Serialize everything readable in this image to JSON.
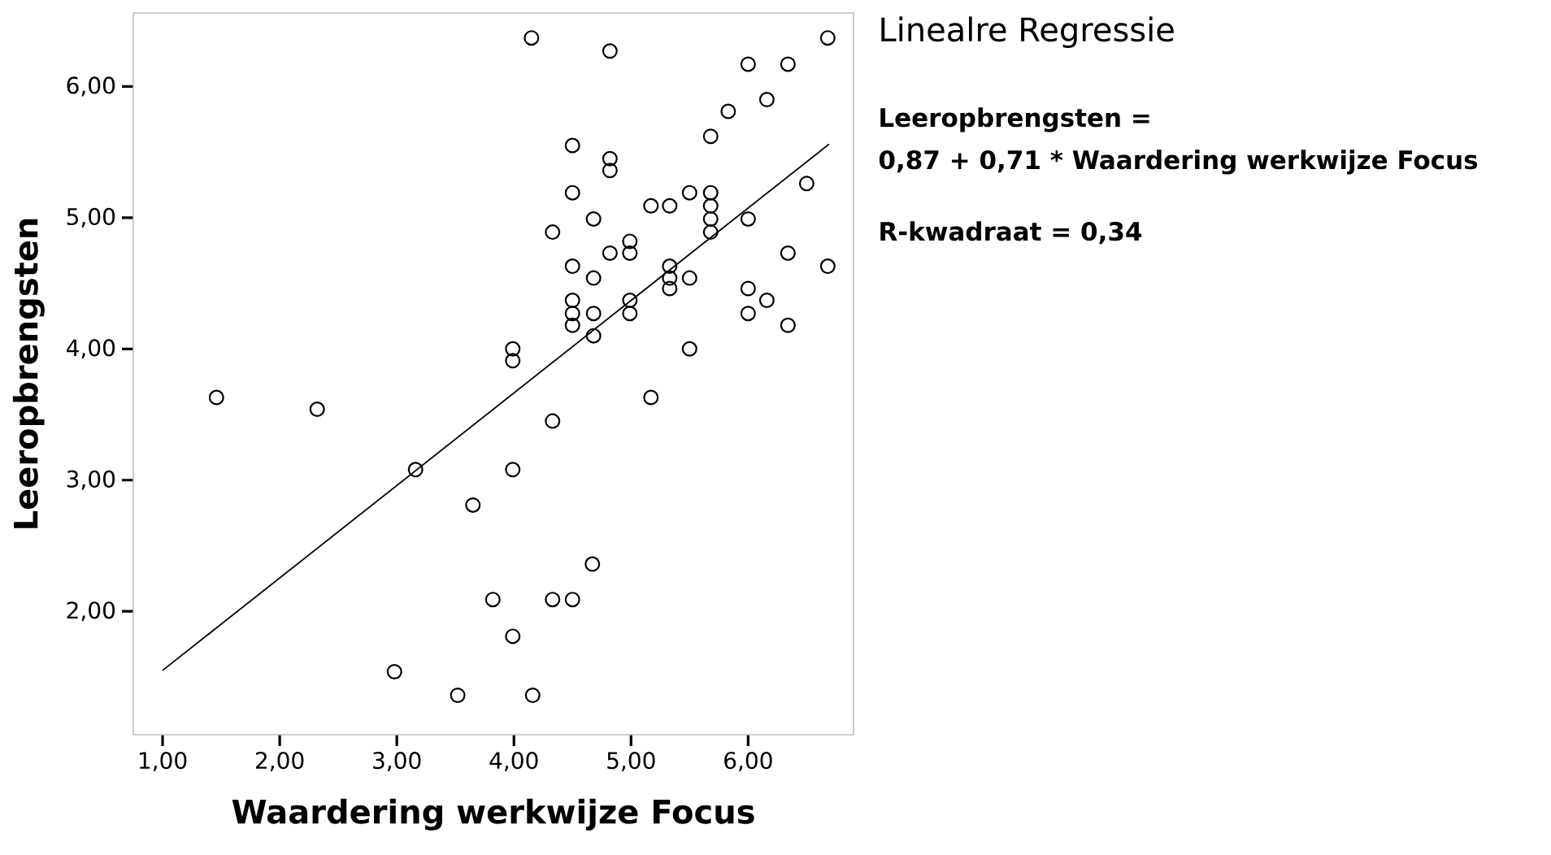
{
  "chart_data": {
    "type": "scatter",
    "title": "Linealre Regressie",
    "xlabel": "Waardering werkwijze Focus",
    "ylabel": "Leeropbrengsten",
    "annotations": [
      "Leeropbrengsten =",
      "0,87 + 0,71 * Waardering werkwijze Focus",
      "R-kwadraat = 0,34"
    ],
    "xlim": [
      0.75,
      6.9
    ],
    "ylim": [
      1.06,
      6.56
    ],
    "xticks": [
      {
        "value": 1,
        "label": "1,00"
      },
      {
        "value": 2,
        "label": "2,00"
      },
      {
        "value": 3,
        "label": "3,00"
      },
      {
        "value": 4,
        "label": "4,00"
      },
      {
        "value": 5,
        "label": "5,00"
      },
      {
        "value": 6,
        "label": "6,00"
      }
    ],
    "yticks": [
      {
        "value": 2,
        "label": "2,00"
      },
      {
        "value": 3,
        "label": "3,00"
      },
      {
        "value": 4,
        "label": "4,00"
      },
      {
        "value": 5,
        "label": "5,00"
      },
      {
        "value": 6,
        "label": "6,00"
      }
    ],
    "series": [
      {
        "color": "#000000",
        "marker": "circle",
        "x": [
          1.46,
          2.32,
          3.16,
          2.98,
          3.65,
          3.52,
          3.82,
          3.99,
          3.99,
          3.99,
          3.99,
          4.16,
          4.15,
          4.33,
          4.33,
          4.33,
          4.5,
          4.5,
          4.5,
          4.5,
          4.5,
          4.5,
          4.5,
          4.67,
          4.68,
          4.68,
          4.68,
          4.68,
          4.82,
          4.82,
          4.82,
          4.82,
          4.99,
          4.99,
          4.99,
          4.99,
          5.17,
          5.17,
          5.33,
          5.33,
          5.33,
          5.33,
          5.5,
          5.5,
          5.5,
          5.68,
          5.68,
          5.68,
          5.68,
          5.68,
          5.83,
          6.0,
          6.0,
          6.0,
          6.0,
          6.16,
          6.16,
          6.34,
          6.34,
          6.34,
          6.5,
          6.68,
          6.68
        ],
        "values": [
          3.63,
          3.54,
          3.08,
          1.54,
          2.81,
          1.36,
          2.09,
          1.81,
          3.08,
          3.91,
          4.0,
          1.36,
          6.37,
          2.09,
          3.45,
          4.89,
          2.09,
          4.18,
          4.27,
          4.37,
          4.63,
          5.19,
          5.55,
          2.36,
          4.1,
          4.27,
          4.54,
          4.99,
          4.73,
          5.36,
          5.45,
          6.27,
          4.27,
          4.37,
          4.73,
          4.82,
          3.63,
          5.09,
          4.46,
          4.54,
          4.63,
          5.09,
          4.0,
          4.54,
          5.19,
          4.89,
          4.99,
          5.09,
          5.19,
          5.62,
          5.81,
          4.27,
          4.46,
          4.99,
          6.17,
          4.37,
          5.9,
          4.18,
          4.73,
          6.17,
          5.26,
          4.63,
          6.37
        ]
      },
      {
        "type": "line",
        "color": "#000000",
        "marker": "none",
        "x": [
          1.0,
          6.69
        ],
        "values": [
          1.55,
          5.56
        ]
      }
    ]
  }
}
